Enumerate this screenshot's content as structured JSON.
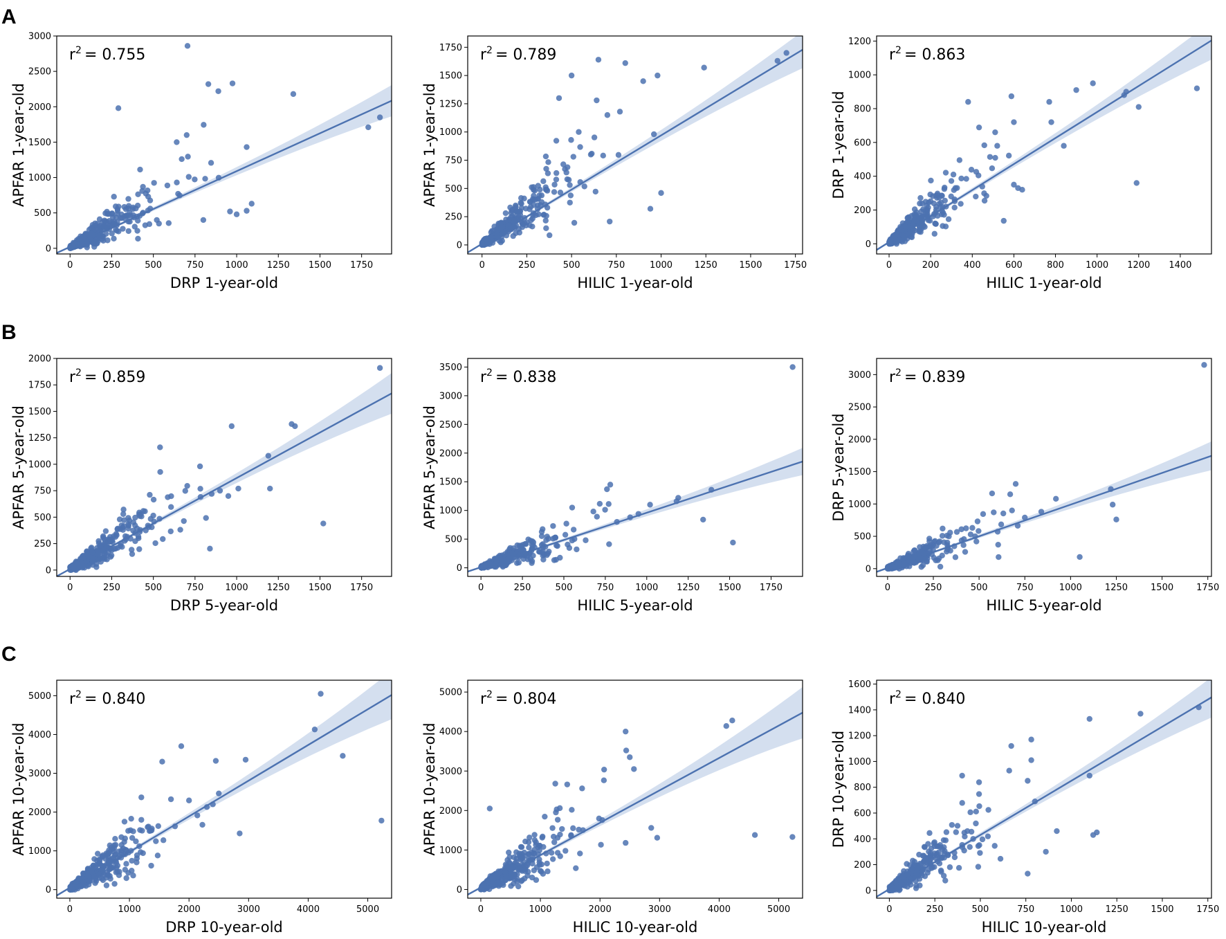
{
  "figure": {
    "row_labels": [
      "A",
      "B",
      "C"
    ],
    "colors": {
      "points": "#4c72b0",
      "line": "#4c72b0",
      "band": "#c5d4ea",
      "axis": "#000000"
    }
  },
  "chart_data": [
    {
      "type": "scatter",
      "panel_row": "A",
      "xlabel": "DRP 1-year-old",
      "ylabel": "APFAR 1-year-old",
      "annotation": {
        "r2_prefix": "r",
        "r2_exp": "2",
        "r2_value": "= 0.755"
      },
      "xlim": [
        -80,
        1930
      ],
      "ylim": [
        -80,
        3000
      ],
      "xticks": [
        0,
        250,
        500,
        750,
        1000,
        1250,
        1500,
        1750
      ],
      "yticks": [
        0,
        500,
        1000,
        1500,
        2000,
        2500,
        3000
      ],
      "regression": {
        "slope": 1.07,
        "intercept": 20,
        "band": [
          0.02,
          0.08
        ]
      },
      "outliers": [
        [
          705,
          2860
        ],
        [
          290,
          1980
        ],
        [
          830,
          2320
        ],
        [
          975,
          2330
        ],
        [
          890,
          2220
        ],
        [
          1340,
          2180
        ],
        [
          1860,
          1850
        ],
        [
          1790,
          1710
        ],
        [
          1060,
          1430
        ],
        [
          700,
          1600
        ],
        [
          640,
          1500
        ],
        [
          1090,
          630
        ],
        [
          1060,
          530
        ],
        [
          1000,
          480
        ],
        [
          960,
          520
        ],
        [
          800,
          400
        ]
      ],
      "cluster": {
        "n": 320,
        "x_scale": 190,
        "x_max": 900,
        "slope": 1.3,
        "spread": 0.55,
        "seed": 11
      }
    },
    {
      "type": "scatter",
      "panel_row": "A",
      "xlabel": "HILIC 1-year-old",
      "ylabel": "APFAR 1-year-old",
      "annotation": {
        "r2_prefix": "r",
        "r2_exp": "2",
        "r2_value": "= 0.789"
      },
      "xlim": [
        -80,
        1790
      ],
      "ylim": [
        -80,
        1850
      ],
      "xticks": [
        0,
        250,
        500,
        750,
        1000,
        1250,
        1500,
        1750
      ],
      "yticks": [
        0,
        250,
        500,
        750,
        1000,
        1250,
        1500,
        1750
      ],
      "regression": {
        "slope": 0.96,
        "intercept": 10,
        "band": [
          0.02,
          0.07
        ]
      },
      "outliers": [
        [
          1700,
          1700
        ],
        [
          1650,
          1630
        ],
        [
          1240,
          1570
        ],
        [
          650,
          1640
        ],
        [
          800,
          1610
        ],
        [
          980,
          1500
        ],
        [
          900,
          1450
        ],
        [
          500,
          1500
        ],
        [
          640,
          1280
        ],
        [
          430,
          1300
        ],
        [
          770,
          1180
        ],
        [
          960,
          980
        ],
        [
          1000,
          460
        ],
        [
          940,
          320
        ],
        [
          700,
          1150
        ],
        [
          540,
          1000
        ]
      ],
      "cluster": {
        "n": 320,
        "x_scale": 170,
        "x_max": 800,
        "slope": 1.15,
        "spread": 0.5,
        "seed": 23
      }
    },
    {
      "type": "scatter",
      "panel_row": "A",
      "xlabel": "HILIC 1-year-old",
      "ylabel": "DRP 1-year-old",
      "annotation": {
        "r2_prefix": "r",
        "r2_exp": "2",
        "r2_value": "= 0.863"
      },
      "xlim": [
        -60,
        1550
      ],
      "ylim": [
        -60,
        1230
      ],
      "xticks": [
        0,
        200,
        400,
        600,
        800,
        1000,
        1200,
        1400
      ],
      "yticks": [
        0,
        200,
        400,
        600,
        800,
        1000,
        1200
      ],
      "regression": {
        "slope": 0.77,
        "intercept": 10,
        "band": [
          0.02,
          0.07
        ]
      },
      "outliers": [
        [
          1480,
          920
        ],
        [
          1140,
          900
        ],
        [
          1130,
          880
        ],
        [
          1200,
          810
        ],
        [
          1190,
          360
        ],
        [
          980,
          950
        ],
        [
          900,
          910
        ],
        [
          770,
          840
        ],
        [
          780,
          720
        ],
        [
          600,
          720
        ],
        [
          510,
          660
        ],
        [
          380,
          840
        ],
        [
          840,
          580
        ],
        [
          620,
          330
        ],
        [
          640,
          320
        ],
        [
          600,
          350
        ],
        [
          520,
          580
        ]
      ],
      "cluster": {
        "n": 300,
        "x_scale": 130,
        "x_max": 600,
        "slope": 0.95,
        "spread": 0.5,
        "seed": 37
      }
    },
    {
      "type": "scatter",
      "panel_row": "B",
      "xlabel": "DRP 5-year-old",
      "ylabel": "APFAR 5-year-old",
      "annotation": {
        "r2_prefix": "r",
        "r2_exp": "2",
        "r2_value": "= 0.859"
      },
      "xlim": [
        -80,
        1930
      ],
      "ylim": [
        -60,
        2000
      ],
      "xticks": [
        0,
        250,
        500,
        750,
        1000,
        1250,
        1500,
        1750
      ],
      "yticks": [
        0,
        250,
        500,
        750,
        1000,
        1250,
        1500,
        1750,
        2000
      ],
      "regression": {
        "slope": 0.86,
        "intercept": 10,
        "band": [
          0.02,
          0.09
        ]
      },
      "outliers": [
        [
          1860,
          1910
        ],
        [
          1330,
          1380
        ],
        [
          1350,
          1360
        ],
        [
          970,
          1360
        ],
        [
          540,
          1160
        ],
        [
          1190,
          1080
        ],
        [
          1200,
          770
        ],
        [
          1520,
          440
        ],
        [
          780,
          980
        ],
        [
          900,
          750
        ],
        [
          1010,
          770
        ],
        [
          950,
          700
        ],
        [
          850,
          720
        ]
      ],
      "cluster": {
        "n": 330,
        "x_scale": 180,
        "x_max": 850,
        "slope": 0.95,
        "spread": 0.5,
        "seed": 51
      }
    },
    {
      "type": "scatter",
      "panel_row": "B",
      "xlabel": "HILIC 5-year-old",
      "ylabel": "APFAR 5-year-old",
      "annotation": {
        "r2_prefix": "r",
        "r2_exp": "2",
        "r2_value": "= 0.838"
      },
      "xlim": [
        -80,
        1940
      ],
      "ylim": [
        -150,
        3650
      ],
      "xticks": [
        0,
        250,
        500,
        750,
        1000,
        1250,
        1500,
        1750
      ],
      "yticks": [
        0,
        500,
        1000,
        1500,
        2000,
        2500,
        3000,
        3500
      ],
      "regression": {
        "slope": 0.95,
        "intercept": 10,
        "band": [
          0.02,
          0.1
        ]
      },
      "outliers": [
        [
          1880,
          3500
        ],
        [
          780,
          1450
        ],
        [
          760,
          1370
        ],
        [
          1190,
          1220
        ],
        [
          1180,
          1160
        ],
        [
          1390,
          1360
        ],
        [
          1020,
          1100
        ],
        [
          1340,
          840
        ],
        [
          1520,
          440
        ],
        [
          820,
          800
        ],
        [
          900,
          880
        ],
        [
          950,
          940
        ],
        [
          550,
          1050
        ]
      ],
      "cluster": {
        "n": 320,
        "x_scale": 180,
        "x_max": 850,
        "slope": 1.05,
        "spread": 0.5,
        "seed": 63
      }
    },
    {
      "type": "scatter",
      "panel_row": "B",
      "xlabel": "HILIC 5-year-old",
      "ylabel": "DRP 5-year-old",
      "annotation": {
        "r2_prefix": "r",
        "r2_exp": "2",
        "r2_value": "= 0.839"
      },
      "xlim": [
        -60,
        1770
      ],
      "ylim": [
        -120,
        3250
      ],
      "xticks": [
        0,
        250,
        500,
        750,
        1000,
        1250,
        1500,
        1750
      ],
      "yticks": [
        0,
        500,
        1000,
        1500,
        2000,
        2500,
        3000
      ],
      "regression": {
        "slope": 0.98,
        "intercept": 10,
        "band": [
          0.02,
          0.1
        ]
      },
      "outliers": [
        [
          1730,
          3150
        ],
        [
          1220,
          1230
        ],
        [
          1230,
          990
        ],
        [
          1250,
          760
        ],
        [
          1050,
          180
        ],
        [
          920,
          1080
        ],
        [
          700,
          1310
        ],
        [
          670,
          1150
        ],
        [
          680,
          900
        ],
        [
          840,
          880
        ],
        [
          750,
          790
        ],
        [
          580,
          870
        ]
      ],
      "cluster": {
        "n": 300,
        "x_scale": 160,
        "x_max": 720,
        "slope": 1.05,
        "spread": 0.55,
        "seed": 71
      }
    },
    {
      "type": "scatter",
      "panel_row": "C",
      "xlabel": "DRP 10-year-old",
      "ylabel": "APFAR 10-year-old",
      "annotation": {
        "r2_prefix": "r",
        "r2_exp": "2",
        "r2_value": "= 0.840"
      },
      "xlim": [
        -220,
        5400
      ],
      "ylim": [
        -220,
        5400
      ],
      "xticks": [
        0,
        1000,
        2000,
        3000,
        4000,
        5000
      ],
      "yticks": [
        0,
        1000,
        2000,
        3000,
        4000,
        5000
      ],
      "regression": {
        "slope": 0.92,
        "intercept": 50,
        "band": [
          0.02,
          0.1
        ]
      },
      "outliers": [
        [
          4210,
          5050
        ],
        [
          4110,
          4130
        ],
        [
          4580,
          3450
        ],
        [
          5230,
          1780
        ],
        [
          2450,
          3320
        ],
        [
          1870,
          3700
        ],
        [
          2950,
          3350
        ],
        [
          1550,
          3300
        ],
        [
          1200,
          2380
        ],
        [
          2850,
          1450
        ],
        [
          2500,
          2480
        ],
        [
          2400,
          2200
        ],
        [
          2300,
          2130
        ],
        [
          2000,
          2300
        ]
      ],
      "cluster": {
        "n": 340,
        "x_scale": 500,
        "x_max": 2300,
        "slope": 1.0,
        "spread": 0.5,
        "seed": 83
      }
    },
    {
      "type": "scatter",
      "panel_row": "C",
      "xlabel": "HILIC 10-year-old",
      "ylabel": "APFAR 10-year-old",
      "annotation": {
        "r2_prefix": "r",
        "r2_exp": "2",
        "r2_value": "= 0.804"
      },
      "xlim": [
        -220,
        5400
      ],
      "ylim": [
        -220,
        5300
      ],
      "xticks": [
        0,
        1000,
        2000,
        3000,
        4000,
        5000
      ],
      "yticks": [
        0,
        1000,
        2000,
        3000,
        4000,
        5000
      ],
      "regression": {
        "slope": 0.82,
        "intercept": 50,
        "band": [
          0.02,
          0.12
        ]
      },
      "outliers": [
        [
          4220,
          4280
        ],
        [
          4120,
          4140
        ],
        [
          2430,
          4000
        ],
        [
          2440,
          3520
        ],
        [
          2500,
          3350
        ],
        [
          2570,
          3050
        ],
        [
          1450,
          2660
        ],
        [
          1250,
          2680
        ],
        [
          1700,
          2560
        ],
        [
          2960,
          1310
        ],
        [
          2860,
          1560
        ],
        [
          2430,
          1180
        ],
        [
          4600,
          1380
        ],
        [
          5230,
          1330
        ],
        [
          150,
          2050
        ]
      ],
      "cluster": {
        "n": 330,
        "x_scale": 450,
        "x_max": 2200,
        "slope": 0.95,
        "spread": 0.55,
        "seed": 97
      }
    },
    {
      "type": "scatter",
      "panel_row": "C",
      "xlabel": "HILIC 10-year-old",
      "ylabel": "DRP 10-year-old",
      "annotation": {
        "r2_prefix": "r",
        "r2_exp": "2",
        "r2_value": "= 0.840"
      },
      "xlim": [
        -70,
        1770
      ],
      "ylim": [
        -60,
        1630
      ],
      "xticks": [
        0,
        250,
        500,
        750,
        1000,
        1250,
        1500,
        1750
      ],
      "yticks": [
        0,
        200,
        400,
        600,
        800,
        1000,
        1200,
        1400,
        1600
      ],
      "regression": {
        "slope": 0.84,
        "intercept": 10,
        "band": [
          0.02,
          0.08
        ]
      },
      "outliers": [
        [
          1700,
          1420
        ],
        [
          1380,
          1370
        ],
        [
          1100,
          1330
        ],
        [
          1100,
          890
        ],
        [
          1140,
          450
        ],
        [
          1120,
          430
        ],
        [
          780,
          1170
        ],
        [
          670,
          1120
        ],
        [
          780,
          1010
        ],
        [
          760,
          850
        ],
        [
          800,
          690
        ],
        [
          920,
          460
        ],
        [
          860,
          300
        ],
        [
          760,
          130
        ],
        [
          400,
          890
        ]
      ],
      "cluster": {
        "n": 320,
        "x_scale": 160,
        "x_max": 750,
        "slope": 0.95,
        "spread": 0.55,
        "seed": 109
      }
    }
  ]
}
